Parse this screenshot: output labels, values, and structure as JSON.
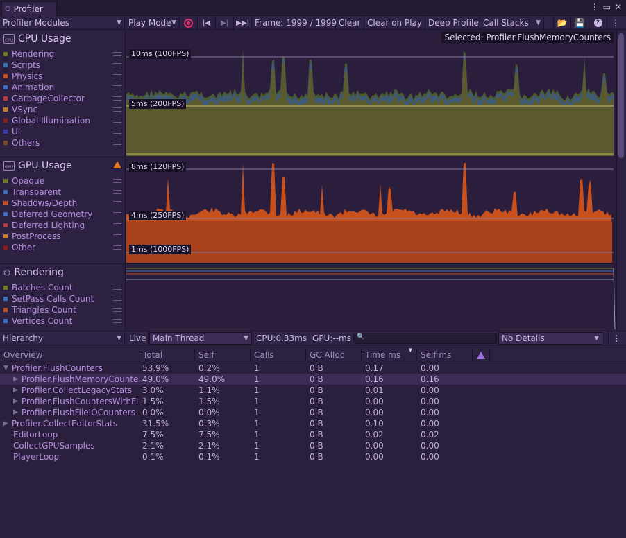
{
  "window": {
    "title": "Profiler",
    "menu_icon": "kebab-icon",
    "maximize_icon": "maximize-icon",
    "close_icon": "close-icon"
  },
  "toolbar": {
    "modules_dropdown": "Profiler Modules",
    "play_mode": "Play Mode",
    "frame": "Frame: 1999 / 1999",
    "clear": "Clear",
    "clear_on_play": "Clear on Play",
    "deep_profile": "Deep Profile",
    "call_stacks": "Call Stacks"
  },
  "cpu_module": {
    "title": "CPU Usage",
    "icon_text": "CPU",
    "items": [
      {
        "label": "Rendering",
        "color": "#6e7d1e"
      },
      {
        "label": "Scripts",
        "color": "#3a72b8"
      },
      {
        "label": "Physics",
        "color": "#c8501c"
      },
      {
        "label": "Animation",
        "color": "#3a6ec8"
      },
      {
        "label": "GarbageCollector",
        "color": "#b83a3a"
      },
      {
        "label": "VSync",
        "color": "#c87a1c"
      },
      {
        "label": "Global Illumination",
        "color": "#8a1c1c"
      },
      {
        "label": "UI",
        "color": "#3a3ab8"
      },
      {
        "label": "Others",
        "color": "#7a4a1c"
      }
    ],
    "chart": {
      "selected": "Selected: Profiler.FlushMemoryCounters",
      "gridline_10ms": "10ms (100FPS)",
      "gridline_5ms": "5ms (200FPS)"
    }
  },
  "gpu_module": {
    "title": "GPU Usage",
    "icon_text": "GPU",
    "warning_icon": "warning-icon",
    "items": [
      {
        "label": "Opaque",
        "color": "#6e7d1e"
      },
      {
        "label": "Transparent",
        "color": "#3a72b8"
      },
      {
        "label": "Shadows/Depth",
        "color": "#c8501c"
      },
      {
        "label": "Deferred Geometry",
        "color": "#3a6ec8"
      },
      {
        "label": "Deferred Lighting",
        "color": "#b83a3a"
      },
      {
        "label": "PostProcess",
        "color": "#c87a1c"
      },
      {
        "label": "Other",
        "color": "#8a1c1c"
      }
    ],
    "chart": {
      "gridline_8ms": "8ms (120FPS)",
      "gridline_4ms": "4ms (250FPS)",
      "gridline_1ms": "1ms (1000FPS)"
    }
  },
  "rendering_module": {
    "title": "Rendering",
    "items": [
      {
        "label": "Batches Count",
        "color": "#6e7d1e"
      },
      {
        "label": "SetPass Calls Count",
        "color": "#3a72b8"
      },
      {
        "label": "Triangles Count",
        "color": "#c8501c"
      },
      {
        "label": "Vertices Count",
        "color": "#3a6ec8"
      }
    ]
  },
  "hierarchy_bar": {
    "view": "Hierarchy",
    "live": "Live",
    "thread": "Main Thread",
    "cpu": "CPU:0.33ms",
    "gpu": "GPU:--ms",
    "search_icon": "search-icon",
    "details": "No Details"
  },
  "table": {
    "columns": [
      "Overview",
      "Total",
      "Self",
      "Calls",
      "GC Alloc",
      "Time ms",
      "Self ms"
    ],
    "rows": [
      {
        "name": "Profiler.FlushCounters",
        "indent": 0,
        "fold": "open",
        "total": "53.9%",
        "self": "0.2%",
        "calls": "1",
        "gc": "0 B",
        "time": "0.17",
        "selfms": "0.00"
      },
      {
        "name": "Profiler.FlushMemoryCounters",
        "indent": 1,
        "fold": "closed",
        "total": "49.0%",
        "self": "49.0%",
        "calls": "1",
        "gc": "0 B",
        "time": "0.16",
        "selfms": "0.16",
        "selected": true
      },
      {
        "name": "Profiler.CollectLegacyStats",
        "indent": 1,
        "fold": "closed",
        "total": "3.0%",
        "self": "1.1%",
        "calls": "1",
        "gc": "0 B",
        "time": "0.01",
        "selfms": "0.00"
      },
      {
        "name": "Profiler.FlushCountersWithFlu",
        "indent": 1,
        "fold": "closed",
        "total": "1.5%",
        "self": "1.5%",
        "calls": "1",
        "gc": "0 B",
        "time": "0.00",
        "selfms": "0.00"
      },
      {
        "name": "Profiler.FlushFileIOCounters",
        "indent": 1,
        "fold": "closed",
        "total": "0.0%",
        "self": "0.0%",
        "calls": "1",
        "gc": "0 B",
        "time": "0.00",
        "selfms": "0.00"
      },
      {
        "name": "Profiler.CollectEditorStats",
        "indent": 0,
        "fold": "closed",
        "total": "31.5%",
        "self": "0.3%",
        "calls": "1",
        "gc": "0 B",
        "time": "0.10",
        "selfms": "0.00"
      },
      {
        "name": "EditorLoop",
        "indent": 0,
        "fold": "none",
        "total": "7.5%",
        "self": "7.5%",
        "calls": "1",
        "gc": "0 B",
        "time": "0.02",
        "selfms": "0.02"
      },
      {
        "name": "CollectGPUSamples",
        "indent": 0,
        "fold": "none",
        "total": "2.1%",
        "self": "2.1%",
        "calls": "1",
        "gc": "0 B",
        "time": "0.00",
        "selfms": "0.00"
      },
      {
        "name": "PlayerLoop",
        "indent": 0,
        "fold": "none",
        "total": "0.1%",
        "self": "0.1%",
        "calls": "1",
        "gc": "0 B",
        "time": "0.00",
        "selfms": "0.00"
      }
    ]
  }
}
